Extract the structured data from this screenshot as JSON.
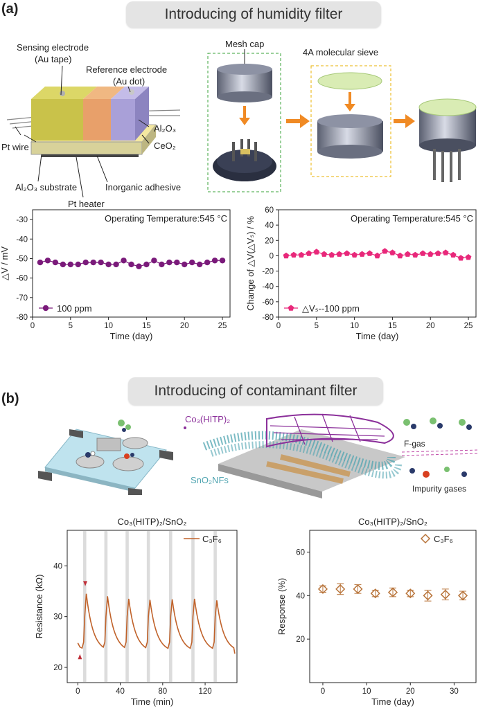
{
  "panel_a": {
    "label": "(a)",
    "banner": "Introducing of humidity filter",
    "sensor_labels": {
      "sensing": "Sensing electrode",
      "sensing_sub": "(Au tape)",
      "reference": "Reference electrode",
      "reference_sub": "(Au dot)",
      "pt_wire": "Pt wire",
      "al2o3": "Al₂O₃",
      "ceo2": "CeO₂",
      "substrate": "Al₂O₃ substrate",
      "adhesive": "Inorganic adhesive",
      "heater": "Pt heater"
    },
    "mesh_cap": "Mesh cap",
    "sieve": "4A molecular sieve",
    "colors": {
      "sensing": "#c9c24a",
      "ceo2": "#e8a06a",
      "reference": "#a9a0d8",
      "arrow": "#f08a24",
      "green_box": "#3aa33a",
      "yellow_box": "#e8b000"
    }
  },
  "panel_b": {
    "label": "(b)",
    "banner": "Introducing of contaminant filter",
    "mof_label": "Co₃(HITP)₂",
    "nf_label": "SnO₂NFs",
    "fgas": "F-gas",
    "impurity": "Impurity gases",
    "colors": {
      "mof": "#8b2f9a",
      "nf": "#4fa4b0"
    }
  },
  "chart_data": [
    {
      "type": "line",
      "id": "a-left",
      "annotation": "Operating Temperature:545 °C",
      "ylabel": "△V / mV",
      "xlabel": "Time (day)",
      "xlim": [
        0,
        26
      ],
      "ylim": [
        -80,
        -25
      ],
      "xticks": [
        "0",
        "5",
        "10",
        "15",
        "20",
        "25"
      ],
      "yticks": [
        "-30",
        "-40",
        "-50",
        "-60",
        "-70",
        "-80"
      ],
      "series": [
        {
          "name": "100 ppm",
          "color": "#7a1a7a",
          "x": [
            1,
            2,
            3,
            4,
            5,
            6,
            7,
            8,
            9,
            10,
            11,
            12,
            13,
            14,
            15,
            16,
            17,
            18,
            19,
            20,
            21,
            22,
            23,
            24,
            25
          ],
          "y": [
            -52,
            -51,
            -52,
            -53,
            -53,
            -53,
            -52,
            -52,
            -52,
            -53,
            -53,
            -51,
            -53,
            -54,
            -53,
            -51,
            -53,
            -52,
            -52,
            -53,
            -52,
            -53,
            -52,
            -51,
            -51
          ]
        }
      ]
    },
    {
      "type": "line",
      "id": "a-right",
      "annotation": "Operating Temperature:545 °C",
      "ylabel": "Change of △V(△Vₛ) / %",
      "xlabel": "Time (day)",
      "xlim": [
        0,
        26
      ],
      "ylim": [
        -80,
        60
      ],
      "xticks": [
        "0",
        "5",
        "10",
        "15",
        "20",
        "25"
      ],
      "yticks": [
        "60",
        "40",
        "20",
        "0",
        "-20",
        "-40",
        "-60",
        "-80"
      ],
      "series": [
        {
          "name": "△Vₛ--100 ppm",
          "color": "#e8287a",
          "x": [
            1,
            2,
            3,
            4,
            5,
            6,
            7,
            8,
            9,
            10,
            11,
            12,
            13,
            14,
            15,
            16,
            17,
            18,
            19,
            20,
            21,
            22,
            23,
            24,
            25
          ],
          "y": [
            0,
            1,
            1,
            3,
            5,
            2,
            1,
            2,
            3,
            1,
            2,
            3,
            0,
            6,
            4,
            0,
            2,
            1,
            3,
            2,
            3,
            4,
            1,
            -3,
            -2
          ]
        }
      ]
    },
    {
      "type": "line",
      "id": "b-left",
      "title": "Co₃(HITP)₂/SnO₂",
      "ylabel": "Resistance (kΩ)",
      "xlabel": "Time (min)",
      "xlim": [
        -10,
        150
      ],
      "ylim": [
        17,
        47
      ],
      "xticks": [
        "0",
        "40",
        "80",
        "120"
      ],
      "yticks": [
        "40",
        "30",
        "20"
      ],
      "pulses": [
        5,
        25,
        45,
        65,
        86,
        107,
        128
      ],
      "series": [
        {
          "name": "C₃F₆",
          "color": "#c0622a"
        }
      ]
    },
    {
      "type": "scatter",
      "id": "b-right",
      "title": "Co₃(HITP)₂/SnO₂",
      "ylabel": "Response (%)",
      "xlabel": "Time (day)",
      "xlim": [
        -3,
        35
      ],
      "ylim": [
        0,
        70
      ],
      "xticks": [
        "0",
        "10",
        "20",
        "30"
      ],
      "yticks": [
        "60",
        "40",
        "20"
      ],
      "series": [
        {
          "name": "C₃F₆",
          "color": "#b8743a",
          "x": [
            0,
            4,
            8,
            12,
            16,
            20,
            24,
            28,
            32
          ],
          "y": [
            43,
            43,
            43,
            41,
            41.5,
            41,
            40,
            40.5,
            40
          ],
          "err": [
            1.5,
            2.5,
            2,
            1.5,
            2,
            1.5,
            2.5,
            2.5,
            2
          ]
        }
      ]
    }
  ]
}
